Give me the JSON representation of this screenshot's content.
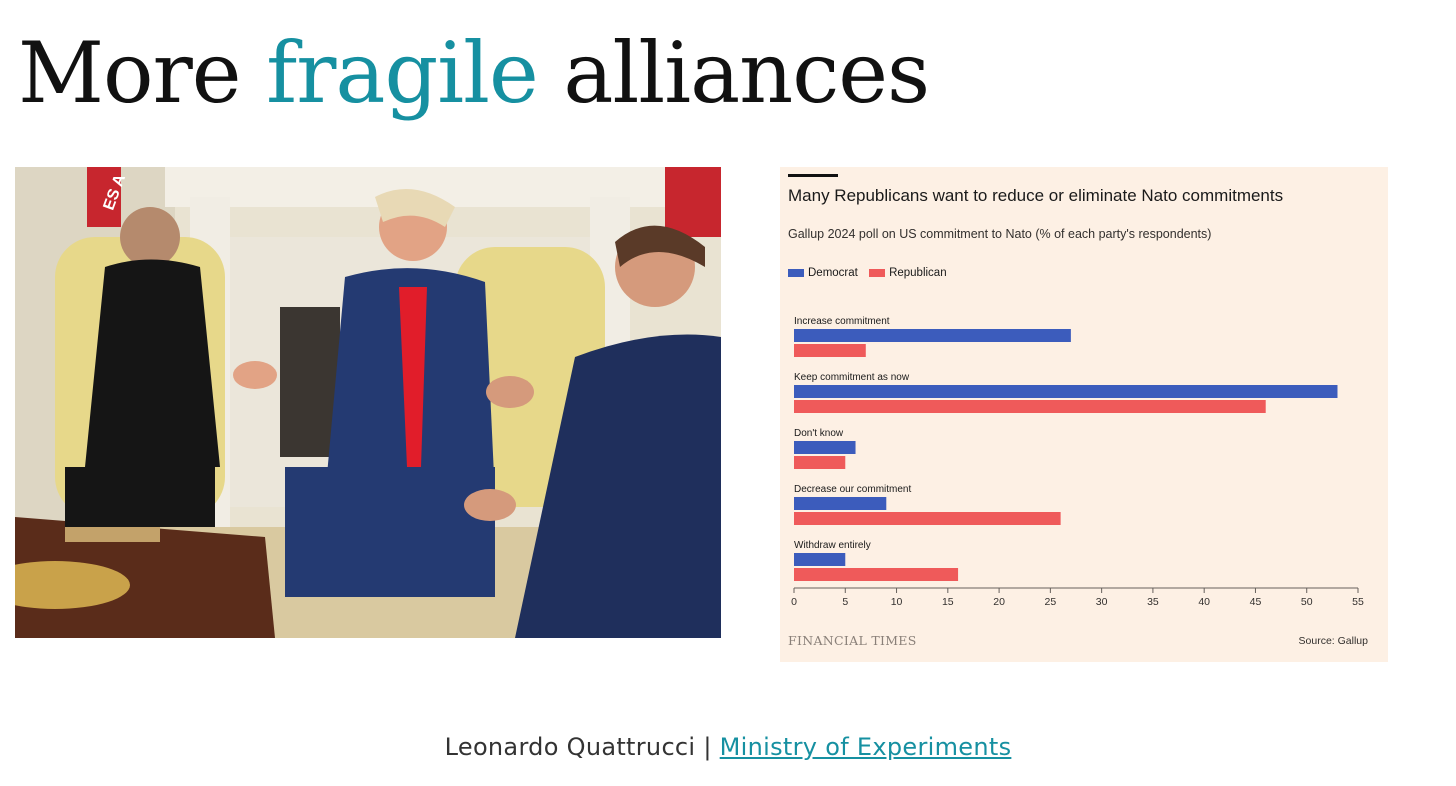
{
  "slide": {
    "title_before": "More",
    "title_accent": "fragile",
    "title_after": "alliances",
    "accent_color": "#1690a1"
  },
  "photo": {
    "description": "Oval Office meeting photo",
    "banner_text": "ES A"
  },
  "footer": {
    "author": "Leonardo Quattrucci",
    "separator": "|",
    "link_text": "Ministry of Experiments"
  },
  "chart_data": {
    "type": "bar",
    "orientation": "horizontal",
    "title": "Many Republicans want to reduce or eliminate Nato commitments",
    "subtitle": "Gallup 2024 poll on US commitment to Nato (% of each party's respondents)",
    "categories": [
      "Increase commitment",
      "Keep commitment as now",
      "Don't know",
      "Decrease our commitment",
      "Withdraw entirely"
    ],
    "series": [
      {
        "name": "Democrat",
        "color": "#3c5cbc",
        "values": [
          27,
          53,
          6,
          9,
          5
        ]
      },
      {
        "name": "Republican",
        "color": "#ef5a5a",
        "values": [
          7,
          46,
          5,
          26,
          16
        ]
      }
    ],
    "xlim": [
      0,
      55
    ],
    "xticks": [
      0,
      5,
      10,
      15,
      20,
      25,
      30,
      35,
      40,
      45,
      50,
      55
    ],
    "legend_position": "top-left",
    "grid": false,
    "brand": "FINANCIAL TIMES",
    "source": "Source: Gallup",
    "background": "#fdf0e4"
  }
}
